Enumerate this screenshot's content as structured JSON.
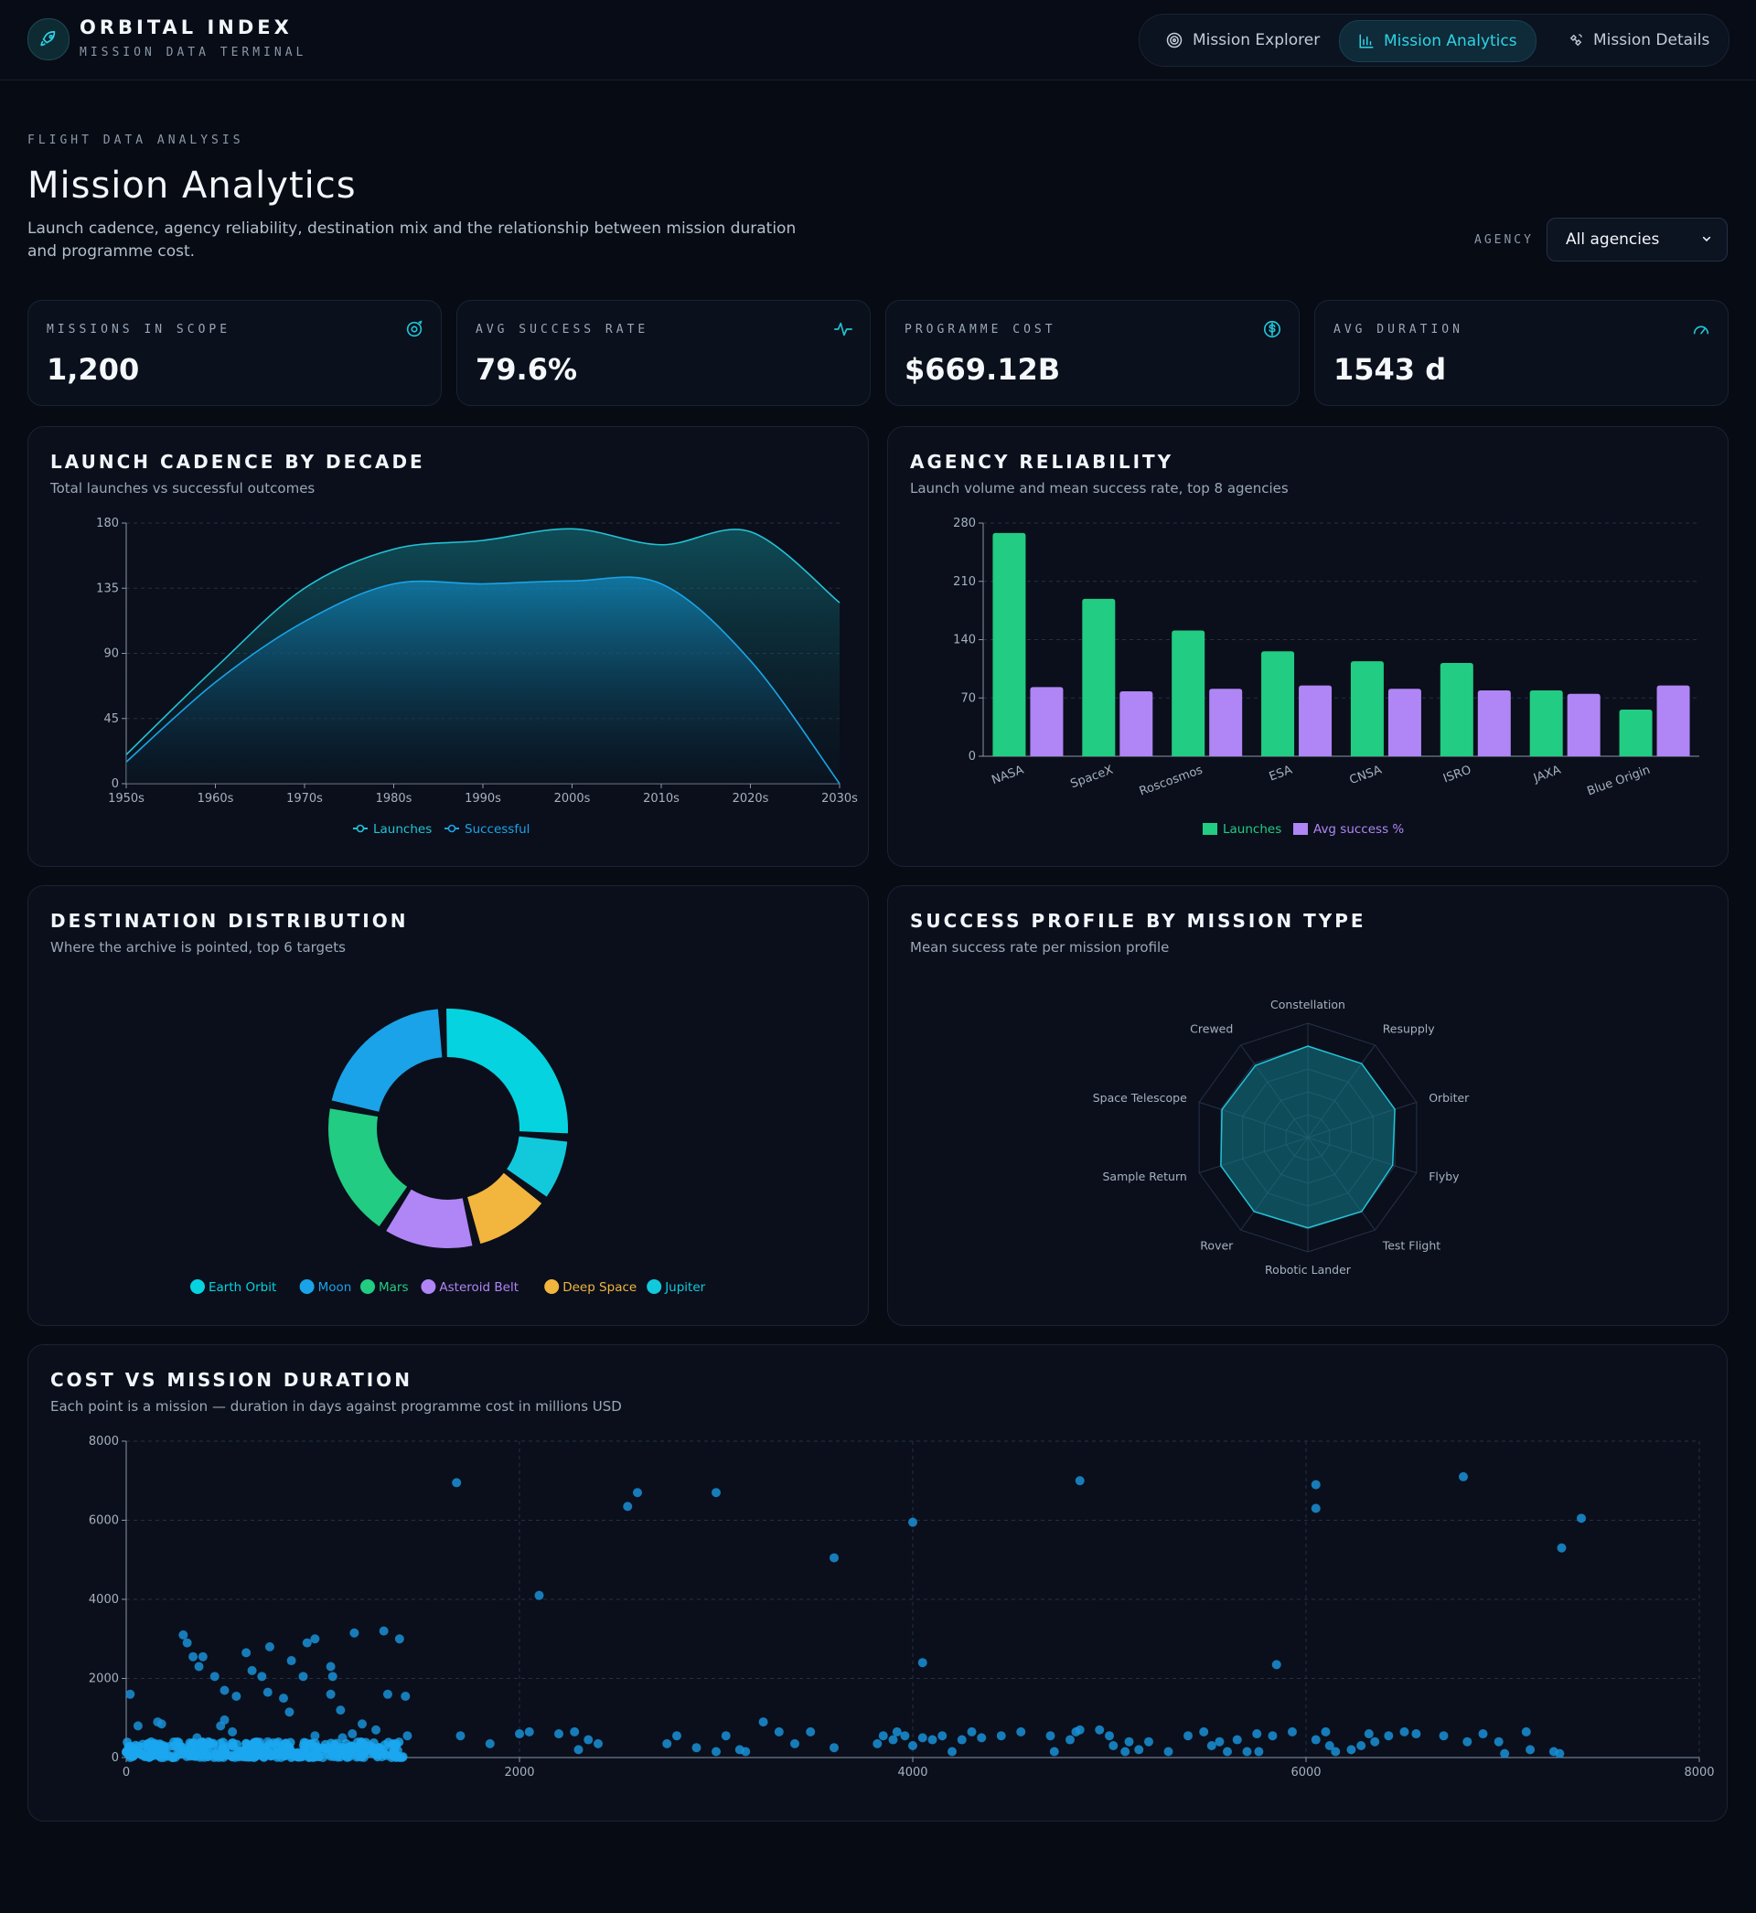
{
  "header": {
    "brand_title": "ORBITAL INDEX",
    "brand_subtitle": "MISSION DATA TERMINAL",
    "tabs": [
      {
        "label": "Mission Explorer",
        "icon": "orbit-icon",
        "active": false
      },
      {
        "label": "Mission Analytics",
        "icon": "bar-chart-icon",
        "active": true
      },
      {
        "label": "Mission Details",
        "icon": "satellite-icon",
        "active": false
      }
    ]
  },
  "page": {
    "eyebrow": "FLIGHT DATA ANALYSIS",
    "title": "Mission Analytics",
    "description": "Launch cadence, agency reliability, destination mix and the relationship between mission duration and programme cost.",
    "agency_label": "AGENCY",
    "agency_value": "All agencies"
  },
  "kpis": [
    {
      "label": "MISSIONS IN SCOPE",
      "value": "1,200",
      "icon": "orbit-target-icon"
    },
    {
      "label": "AVG SUCCESS RATE",
      "value": "79.6%",
      "icon": "pulse-icon"
    },
    {
      "label": "PROGRAMME COST",
      "value": "$669.12B",
      "icon": "dollar-icon"
    },
    {
      "label": "AVG DURATION",
      "value": "1543 d",
      "icon": "gauge-icon"
    }
  ],
  "panels": {
    "cadence": {
      "title": "LAUNCH CADENCE BY DECADE",
      "subtitle": "Total launches vs successful outcomes"
    },
    "reliability": {
      "title": "AGENCY RELIABILITY",
      "subtitle": "Launch volume and mean success rate, top 8 agencies"
    },
    "destinations": {
      "title": "DESTINATION DISTRIBUTION",
      "subtitle": "Where the archive is pointed, top 6 targets"
    },
    "profile": {
      "title": "SUCCESS PROFILE BY MISSION TYPE",
      "subtitle": "Mean success rate per mission profile"
    },
    "cost": {
      "title": "COST VS MISSION DURATION",
      "subtitle": "Each point is a mission — duration in days against programme cost in millions USD"
    }
  },
  "colors": {
    "teal": "#22c3d6",
    "blue": "#1aa3e8",
    "green": "#22cc82",
    "purple": "#b085f5",
    "orange": "#f2b53e",
    "cyan": "#06d3e0"
  },
  "chart_data": [
    {
      "id": "cadence",
      "type": "area",
      "x": [
        "1950s",
        "1960s",
        "1970s",
        "1980s",
        "1990s",
        "2000s",
        "2010s",
        "2020s",
        "2030s"
      ],
      "series": [
        {
          "name": "Launches",
          "values": [
            20,
            80,
            135,
            162,
            168,
            176,
            165,
            174,
            125
          ]
        },
        {
          "name": "Successful",
          "values": [
            15,
            70,
            112,
            138,
            138,
            140,
            138,
            85,
            0
          ]
        }
      ],
      "ylim": [
        0,
        180
      ],
      "yticks": [
        0,
        45,
        90,
        135,
        180
      ],
      "legend": "bottom"
    },
    {
      "id": "reliability",
      "type": "bar",
      "categories": [
        "NASA",
        "SpaceX",
        "Roscosmos",
        "ESA",
        "CNSA",
        "ISRO",
        "JAXA",
        "Blue Origin"
      ],
      "series": [
        {
          "name": "Launches",
          "values": [
            268,
            189,
            151,
            126,
            114,
            112,
            79,
            56
          ]
        },
        {
          "name": "Avg success %",
          "values": [
            83,
            78,
            81,
            85,
            81,
            79,
            75,
            85
          ]
        }
      ],
      "ylim": [
        0,
        280
      ],
      "yticks": [
        0,
        70,
        140,
        210,
        280
      ],
      "legend": "bottom"
    },
    {
      "id": "destinations",
      "type": "pie",
      "labels": [
        "Earth Orbit",
        "Moon",
        "Mars",
        "Asteroid Belt",
        "Deep Space",
        "Jupiter"
      ],
      "values": [
        27,
        21,
        19,
        13,
        11,
        9
      ],
      "donut": true,
      "legend": "bottom"
    },
    {
      "id": "profile",
      "type": "radar",
      "axes": [
        "Constellation",
        "Resupply",
        "Orbiter",
        "Flyby",
        "Test Flight",
        "Robotic Lander",
        "Rover",
        "Sample Return",
        "Space Telescope",
        "Crewed"
      ],
      "values": [
        80,
        80,
        80,
        78,
        80,
        79,
        80,
        80,
        79,
        78
      ],
      "rmax": 100
    },
    {
      "id": "cost",
      "type": "scatter",
      "xlim": [
        0,
        8000
      ],
      "ylim": [
        0,
        8000
      ],
      "xticks": [
        0,
        2000,
        4000,
        6000,
        8000
      ],
      "yticks": [
        0,
        2000,
        4000,
        6000,
        8000
      ],
      "points": [
        [
          1680,
          6950
        ],
        [
          2550,
          6350
        ],
        [
          2600,
          6700
        ],
        [
          3000,
          6700
        ],
        [
          4850,
          7000
        ],
        [
          6050,
          6900
        ],
        [
          6050,
          6300
        ],
        [
          6800,
          7100
        ],
        [
          7300,
          5300
        ],
        [
          7400,
          6050
        ],
        [
          3600,
          5050
        ],
        [
          4000,
          5950
        ],
        [
          2100,
          4100
        ],
        [
          4050,
          2400
        ],
        [
          5850,
          2350
        ],
        [
          20,
          1600
        ],
        [
          290,
          3100
        ],
        [
          310,
          2900
        ],
        [
          340,
          2550
        ],
        [
          390,
          2550
        ],
        [
          370,
          2300
        ],
        [
          450,
          2050
        ],
        [
          500,
          1700
        ],
        [
          560,
          1550
        ],
        [
          610,
          2650
        ],
        [
          640,
          2200
        ],
        [
          690,
          2050
        ],
        [
          720,
          1650
        ],
        [
          800,
          1500
        ],
        [
          730,
          2800
        ],
        [
          840,
          2450
        ],
        [
          900,
          2050
        ],
        [
          920,
          2900
        ],
        [
          960,
          3000
        ],
        [
          1050,
          2050
        ],
        [
          1040,
          2300
        ],
        [
          1040,
          1600
        ],
        [
          1090,
          1200
        ],
        [
          1160,
          3150
        ],
        [
          1310,
          3200
        ],
        [
          1330,
          1600
        ],
        [
          1390,
          3000
        ],
        [
          1420,
          1550
        ],
        [
          1200,
          850
        ],
        [
          1100,
          500
        ],
        [
          60,
          800
        ],
        [
          160,
          900
        ],
        [
          180,
          850
        ],
        [
          260,
          400
        ],
        [
          360,
          500
        ],
        [
          480,
          800
        ],
        [
          500,
          950
        ],
        [
          540,
          650
        ],
        [
          720,
          400
        ],
        [
          830,
          1150
        ],
        [
          960,
          550
        ],
        [
          1150,
          600
        ],
        [
          1270,
          700
        ],
        [
          1360,
          350
        ],
        [
          1430,
          550
        ],
        [
          1700,
          550
        ],
        [
          1850,
          350
        ],
        [
          2000,
          600
        ],
        [
          2050,
          650
        ],
        [
          2200,
          600
        ],
        [
          2280,
          650
        ],
        [
          2300,
          200
        ],
        [
          2350,
          450
        ],
        [
          2400,
          350
        ],
        [
          2750,
          350
        ],
        [
          2800,
          550
        ],
        [
          2900,
          250
        ],
        [
          3000,
          150
        ],
        [
          3050,
          550
        ],
        [
          3120,
          200
        ],
        [
          3150,
          150
        ],
        [
          3240,
          900
        ],
        [
          3320,
          650
        ],
        [
          3400,
          350
        ],
        [
          3480,
          650
        ],
        [
          3600,
          250
        ],
        [
          3820,
          350
        ],
        [
          3850,
          550
        ],
        [
          3900,
          450
        ],
        [
          3920,
          650
        ],
        [
          3960,
          550
        ],
        [
          4000,
          300
        ],
        [
          4050,
          500
        ],
        [
          4100,
          450
        ],
        [
          4150,
          550
        ],
        [
          4200,
          150
        ],
        [
          4250,
          450
        ],
        [
          4300,
          650
        ],
        [
          4350,
          500
        ],
        [
          4450,
          550
        ],
        [
          4550,
          650
        ],
        [
          4700,
          550
        ],
        [
          4720,
          150
        ],
        [
          4800,
          450
        ],
        [
          4830,
          650
        ],
        [
          4850,
          700
        ],
        [
          4950,
          700
        ],
        [
          5000,
          550
        ],
        [
          5020,
          300
        ],
        [
          5080,
          150
        ],
        [
          5100,
          400
        ],
        [
          5150,
          200
        ],
        [
          5200,
          400
        ],
        [
          5300,
          150
        ],
        [
          5400,
          550
        ],
        [
          5480,
          650
        ],
        [
          5520,
          300
        ],
        [
          5560,
          400
        ],
        [
          5600,
          150
        ],
        [
          5650,
          450
        ],
        [
          5700,
          150
        ],
        [
          5750,
          600
        ],
        [
          5760,
          150
        ],
        [
          5830,
          550
        ],
        [
          5930,
          650
        ],
        [
          6050,
          450
        ],
        [
          6100,
          650
        ],
        [
          6120,
          300
        ],
        [
          6150,
          150
        ],
        [
          6230,
          200
        ],
        [
          6280,
          300
        ],
        [
          6320,
          600
        ],
        [
          6350,
          400
        ],
        [
          6420,
          550
        ],
        [
          6500,
          650
        ],
        [
          6560,
          600
        ],
        [
          6700,
          550
        ],
        [
          6820,
          400
        ],
        [
          6900,
          600
        ],
        [
          6980,
          400
        ],
        [
          7010,
          100
        ],
        [
          7120,
          650
        ],
        [
          7140,
          200
        ],
        [
          7260,
          150
        ],
        [
          7290,
          100
        ]
      ],
      "dense_cluster": {
        "x_range": [
          0,
          1420
        ],
        "y_range": [
          0,
          400
        ]
      }
    }
  ]
}
